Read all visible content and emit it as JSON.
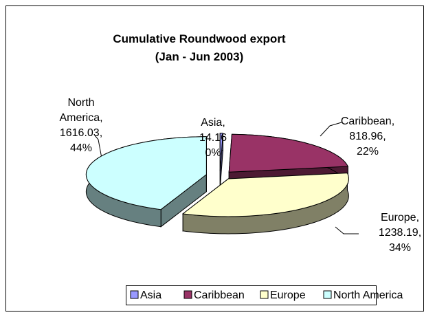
{
  "chart_data": {
    "type": "pie",
    "title": [
      "Cumulative Roundwood export",
      "(Jan - Jun 2003)"
    ],
    "categories": [
      "Asia",
      "Caribbean",
      "Europe",
      "North America"
    ],
    "values": [
      14.16,
      818.96,
      1238.19,
      1616.03
    ],
    "value_labels": [
      "14.16",
      "818.96,",
      "1238.19,",
      "1616.03,"
    ],
    "data_label_names": [
      [
        "Asia,"
      ],
      [
        "Caribbean,"
      ],
      [
        "Europe,"
      ],
      [
        "North",
        "America,"
      ]
    ],
    "percent_labels": [
      "0%",
      "22%",
      "34%",
      "44%"
    ],
    "colors": [
      "#9999ff",
      "#993366",
      "#ffffcc",
      "#ccffff"
    ],
    "legend": "bottom"
  }
}
